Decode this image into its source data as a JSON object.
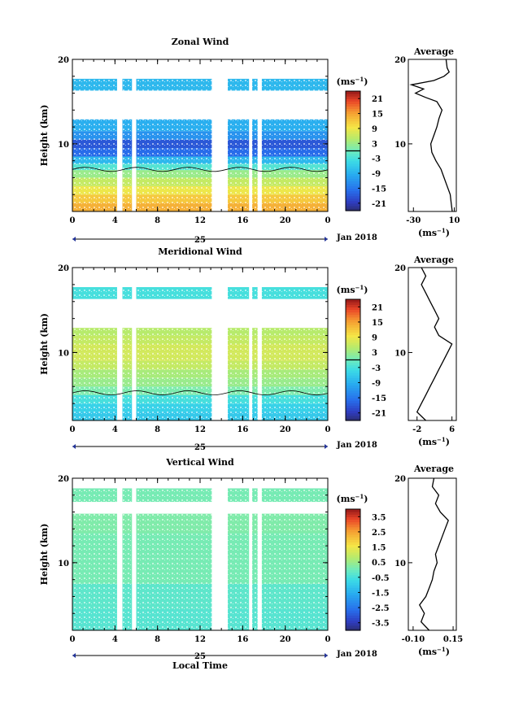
{
  "chart_data": [
    {
      "type": "heatmap",
      "title": "Zonal Wind",
      "ylabel": "Height (km)",
      "unit_label": "(ms-1)",
      "xlim": [
        0,
        24
      ],
      "ylim": [
        2,
        20
      ],
      "x_ticks": [
        "0",
        "4",
        "8",
        "12",
        "16",
        "20",
        "0"
      ],
      "y_ticks": [
        "20",
        "10"
      ],
      "date_marker": "25",
      "date_label": "Jan 2018",
      "colorbar": {
        "ticks": [
          "21",
          "15",
          "9",
          "3",
          "-3",
          "-9",
          "-15",
          "-21"
        ],
        "range": [
          -24,
          24
        ]
      },
      "contour_level": 0,
      "data_bands": [
        {
          "km": 2.5,
          "ms": 14
        },
        {
          "km": 3.5,
          "ms": 12
        },
        {
          "km": 4.5,
          "ms": 9
        },
        {
          "km": 5.5,
          "ms": 6
        },
        {
          "km": 6.5,
          "ms": 3
        },
        {
          "km": 7.3,
          "ms": -2
        },
        {
          "km": 8,
          "ms": -8
        },
        {
          "km": 9,
          "ms": -16
        },
        {
          "km": 10,
          "ms": -18
        },
        {
          "km": 11,
          "ms": -12
        },
        {
          "km": 12,
          "ms": -9
        },
        {
          "km": 17.5,
          "ms": -8
        }
      ],
      "average": {
        "title": "Average",
        "x_ticks": [
          "-30",
          "10"
        ],
        "xlim": [
          -35,
          12
        ],
        "xlabel": "(ms-1)",
        "y_ticks": [
          "20",
          "10"
        ],
        "profile": [
          {
            "km": 2,
            "ms": 8
          },
          {
            "km": 3,
            "ms": 7
          },
          {
            "km": 4,
            "ms": 6
          },
          {
            "km": 5,
            "ms": 3
          },
          {
            "km": 6,
            "ms": 0
          },
          {
            "km": 7,
            "ms": -3
          },
          {
            "km": 8,
            "ms": -8
          },
          {
            "km": 9,
            "ms": -12
          },
          {
            "km": 10,
            "ms": -13
          },
          {
            "km": 11,
            "ms": -10
          },
          {
            "km": 12,
            "ms": -7
          },
          {
            "km": 13,
            "ms": -5
          },
          {
            "km": 14,
            "ms": -2
          },
          {
            "km": 15,
            "ms": -7
          },
          {
            "km": 15.5,
            "ms": -18
          },
          {
            "km": 16,
            "ms": -28
          },
          {
            "km": 16.5,
            "ms": -20
          },
          {
            "km": 17,
            "ms": -32
          },
          {
            "km": 17.5,
            "ms": -10
          },
          {
            "km": 18,
            "ms": 0
          },
          {
            "km": 18.5,
            "ms": 5
          },
          {
            "km": 19,
            "ms": 3
          },
          {
            "km": 20,
            "ms": 2
          }
        ]
      }
    },
    {
      "type": "heatmap",
      "title": "Meridional Wind",
      "ylabel": "Height (km)",
      "unit_label": "(ms-1)",
      "xlim": [
        0,
        24
      ],
      "ylim": [
        2,
        20
      ],
      "x_ticks": [
        "0",
        "4",
        "8",
        "12",
        "16",
        "20",
        "0"
      ],
      "y_ticks": [
        "20",
        "10"
      ],
      "date_marker": "25",
      "date_label": "Jan 2018",
      "colorbar": {
        "ticks": [
          "21",
          "15",
          "9",
          "3",
          "-3",
          "-9",
          "-15",
          "-21"
        ],
        "range": [
          -24,
          24
        ]
      },
      "contour_level": 0,
      "data_bands": [
        {
          "km": 2.5,
          "ms": -6
        },
        {
          "km": 3.5,
          "ms": -5
        },
        {
          "km": 4.5,
          "ms": -3
        },
        {
          "km": 5.5,
          "ms": 1
        },
        {
          "km": 6.5,
          "ms": 3
        },
        {
          "km": 7.5,
          "ms": 4
        },
        {
          "km": 8.5,
          "ms": 6
        },
        {
          "km": 9.5,
          "ms": 7
        },
        {
          "km": 10.5,
          "ms": 7
        },
        {
          "km": 11.5,
          "ms": 6
        },
        {
          "km": 12.5,
          "ms": 5
        },
        {
          "km": 17.5,
          "ms": -3
        }
      ],
      "average": {
        "title": "Average",
        "x_ticks": [
          "-2",
          "6"
        ],
        "xlim": [
          -4,
          7
        ],
        "xlabel": "(ms-1)",
        "y_ticks": [
          "20",
          "10"
        ],
        "profile": [
          {
            "km": 2,
            "ms": 0
          },
          {
            "km": 3,
            "ms": -2
          },
          {
            "km": 4,
            "ms": -1
          },
          {
            "km": 5,
            "ms": 0
          },
          {
            "km": 6,
            "ms": 1
          },
          {
            "km": 7,
            "ms": 2
          },
          {
            "km": 8,
            "ms": 3
          },
          {
            "km": 9,
            "ms": 4
          },
          {
            "km": 10,
            "ms": 5
          },
          {
            "km": 11,
            "ms": 6
          },
          {
            "km": 12,
            "ms": 3
          },
          {
            "km": 13,
            "ms": 2
          },
          {
            "km": 14,
            "ms": 3
          },
          {
            "km": 15,
            "ms": 2
          },
          {
            "km": 16,
            "ms": 1
          },
          {
            "km": 17,
            "ms": 0
          },
          {
            "km": 18,
            "ms": -1
          },
          {
            "km": 19,
            "ms": 0
          },
          {
            "km": 20,
            "ms": -1
          }
        ]
      }
    },
    {
      "type": "heatmap",
      "title": "Vertical Wind",
      "ylabel": "Height (km)",
      "xlabel": "Local Time",
      "unit_label": "(ms-1)",
      "xlim": [
        0,
        24
      ],
      "ylim": [
        2,
        20
      ],
      "x_ticks": [
        "0",
        "4",
        "8",
        "12",
        "16",
        "20",
        "0"
      ],
      "y_ticks": [
        "20",
        "10"
      ],
      "date_marker": "25",
      "date_label": "Jan 2018",
      "colorbar": {
        "ticks": [
          "3.5",
          "2.5",
          "1.5",
          "0.5",
          "-0.5",
          "-1.5",
          "-2.5",
          "-3.5"
        ],
        "range": [
          -4,
          4
        ]
      },
      "data_bands": [
        {
          "km": 3,
          "ms": -0.3
        },
        {
          "km": 6,
          "ms": -0.2
        },
        {
          "km": 9,
          "ms": 0.1
        },
        {
          "km": 12,
          "ms": 0.1
        },
        {
          "km": 15,
          "ms": 0.2
        },
        {
          "km": 18,
          "ms": 0.1
        }
      ],
      "average": {
        "title": "Average",
        "x_ticks": [
          "-0.10",
          "0.15"
        ],
        "xlim": [
          -0.13,
          0.17
        ],
        "xlabel": "(ms-1)",
        "y_ticks": [
          "20",
          "10"
        ],
        "profile": [
          {
            "km": 2,
            "ms": 0.0
          },
          {
            "km": 3,
            "ms": -0.05
          },
          {
            "km": 4,
            "ms": -0.03
          },
          {
            "km": 5,
            "ms": -0.06
          },
          {
            "km": 6,
            "ms": -0.02
          },
          {
            "km": 7,
            "ms": 0.0
          },
          {
            "km": 8,
            "ms": 0.02
          },
          {
            "km": 9,
            "ms": 0.03
          },
          {
            "km": 10,
            "ms": 0.05
          },
          {
            "km": 11,
            "ms": 0.04
          },
          {
            "km": 12,
            "ms": 0.06
          },
          {
            "km": 13,
            "ms": 0.08
          },
          {
            "km": 14,
            "ms": 0.1
          },
          {
            "km": 15,
            "ms": 0.12
          },
          {
            "km": 16,
            "ms": 0.07
          },
          {
            "km": 17,
            "ms": 0.04
          },
          {
            "km": 18,
            "ms": 0.06
          },
          {
            "km": 19,
            "ms": 0.02
          },
          {
            "km": 20,
            "ms": 0.03
          }
        ]
      }
    }
  ]
}
